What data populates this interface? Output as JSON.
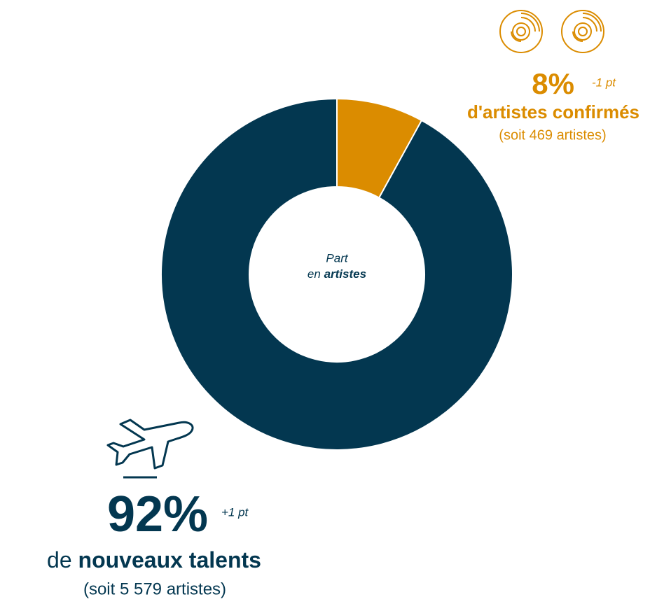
{
  "chart_data": {
    "type": "pie",
    "donut": true,
    "center_label": [
      "Part",
      "en",
      "artistes"
    ],
    "categories": [
      "d'artistes confirmés",
      "nouveaux talents"
    ],
    "category_prefix": "de",
    "values": [
      8,
      92
    ],
    "value_labels": [
      "8%",
      "92%"
    ],
    "changes": [
      "-1 pt",
      "+1 pt"
    ],
    "notes": [
      "(soit 469 artistes)",
      "(soit 5 579 artistes)"
    ],
    "colors": [
      "#db8c00",
      "#033750"
    ]
  }
}
